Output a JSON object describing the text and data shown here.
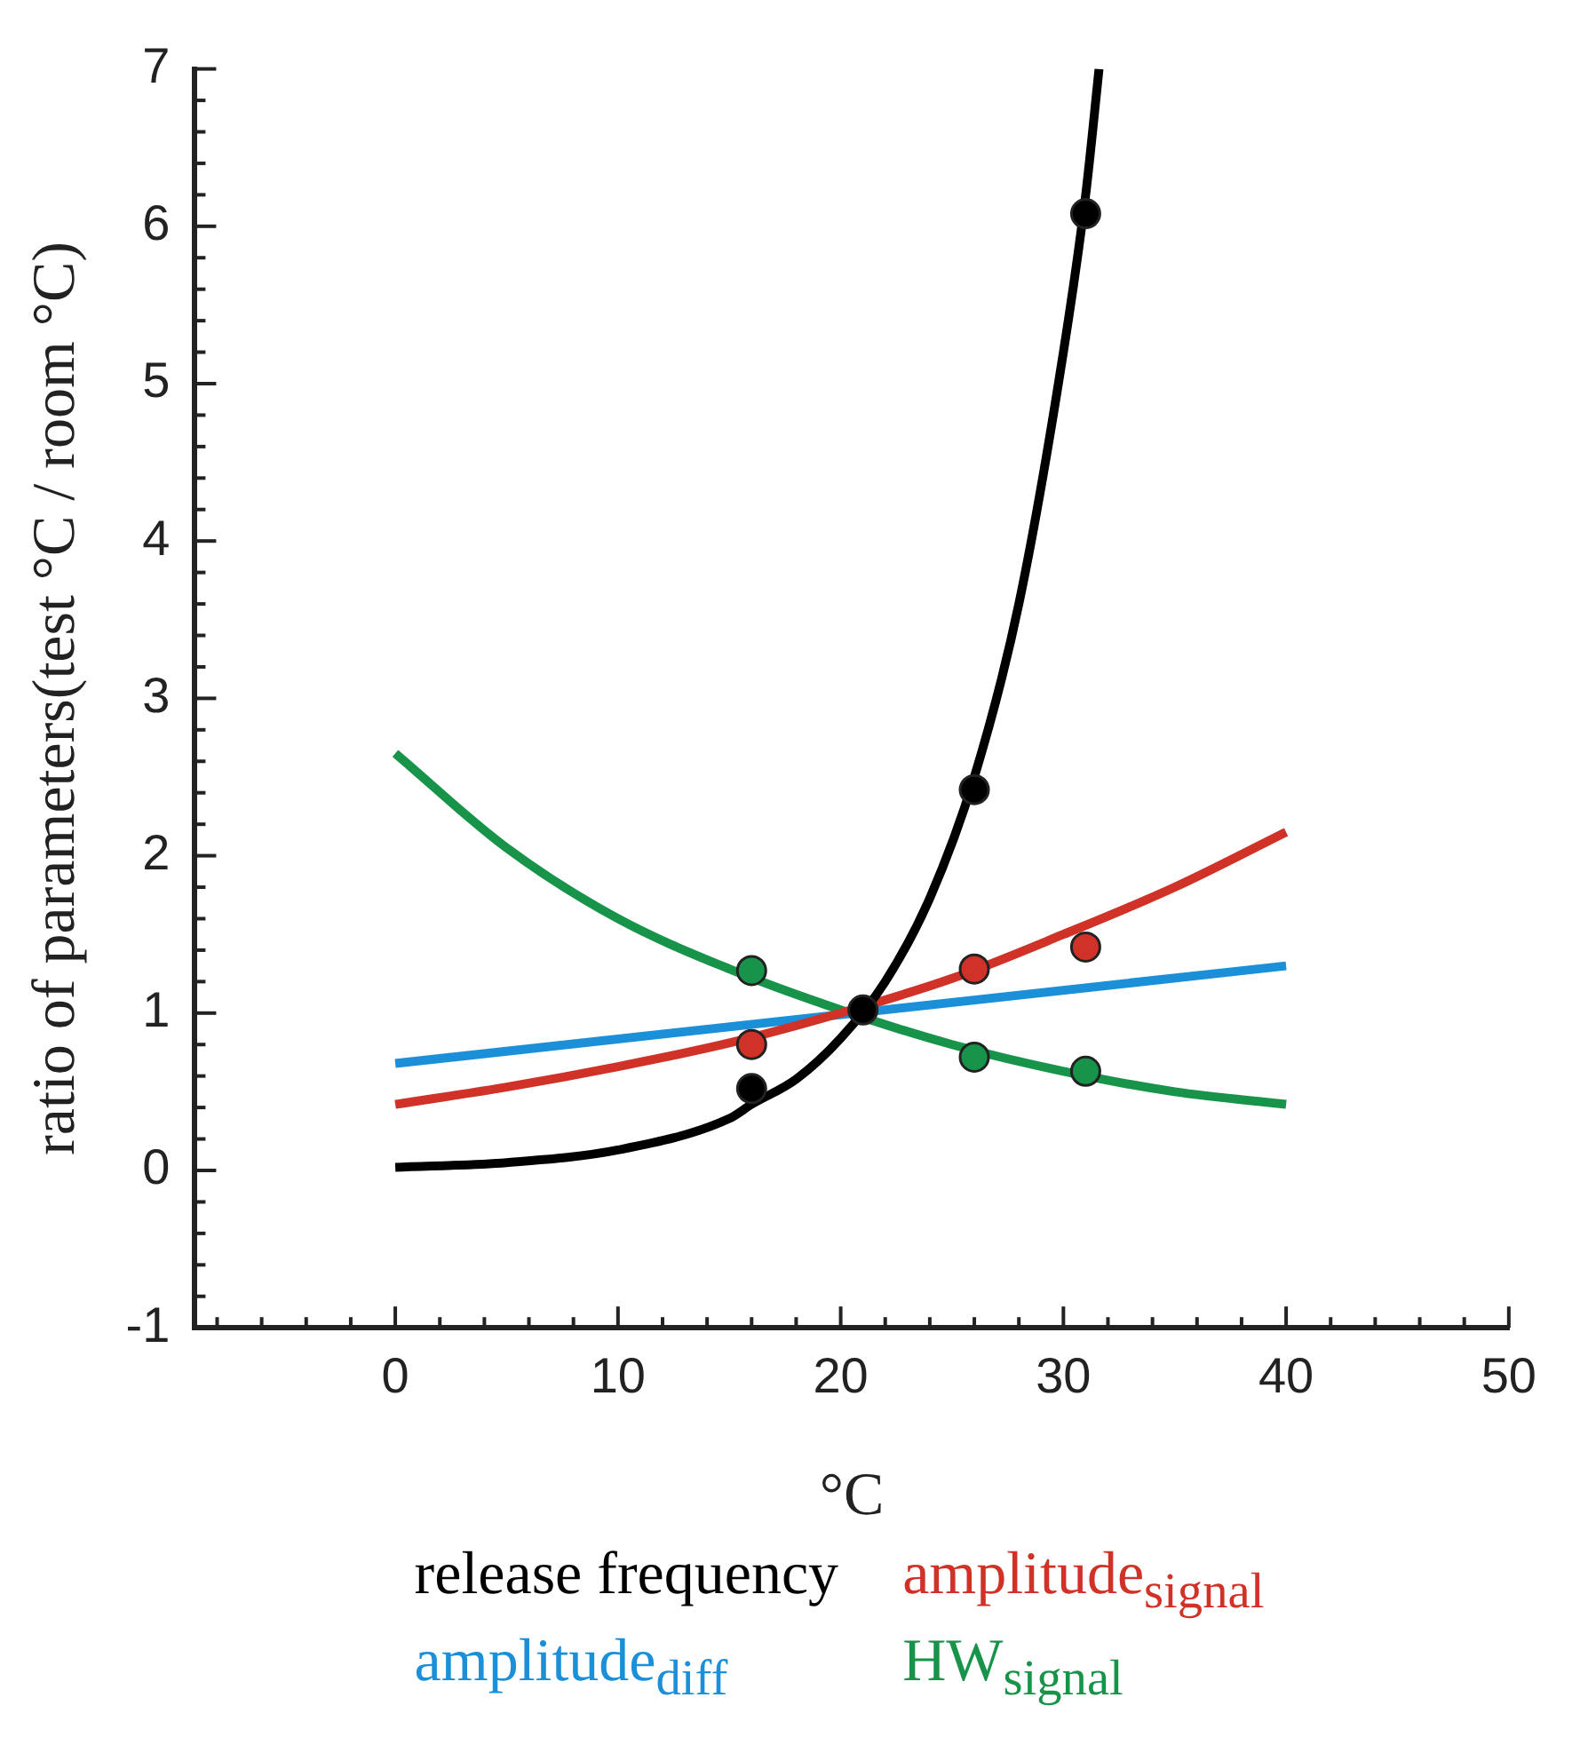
{
  "chart_data": {
    "type": "line",
    "xlabel": "°C",
    "ylabel": "ratio of parameters(test °C / room °C)",
    "xlim": [
      -9,
      50
    ],
    "xticks": [
      {
        "value": -8,
        "label": null
      },
      {
        "value": -6,
        "label": null
      },
      {
        "value": -4,
        "label": null
      },
      {
        "value": -2,
        "label": null
      },
      0,
      {
        "value": 2,
        "label": null
      },
      {
        "value": 4,
        "label": null
      },
      {
        "value": 6,
        "label": null
      },
      {
        "value": 8,
        "label": null
      },
      10,
      {
        "value": 12,
        "label": null
      },
      {
        "value": 14,
        "label": null
      },
      {
        "value": 16,
        "label": null
      },
      {
        "value": 18,
        "label": null
      },
      20,
      {
        "value": 22,
        "label": null
      },
      {
        "value": 24,
        "label": null
      },
      {
        "value": 26,
        "label": null
      },
      {
        "value": 28,
        "label": null
      },
      30,
      {
        "value": 32,
        "label": null
      },
      {
        "value": 34,
        "label": null
      },
      {
        "value": 36,
        "label": null
      },
      {
        "value": 38,
        "label": null
      },
      40,
      {
        "value": 42,
        "label": null
      },
      {
        "value": 44,
        "label": null
      },
      {
        "value": 46,
        "label": null
      },
      {
        "value": 48,
        "label": null
      },
      50
    ],
    "ylim": [
      -1,
      7
    ],
    "yticks": [
      -1,
      {
        "value": -0.8,
        "label": null
      },
      {
        "value": -0.6,
        "label": null
      },
      {
        "value": -0.4,
        "label": null
      },
      {
        "value": -0.2,
        "label": null
      },
      0,
      {
        "value": 0.2,
        "label": null
      },
      {
        "value": 0.4,
        "label": null
      },
      {
        "value": 0.6,
        "label": null
      },
      {
        "value": 0.8,
        "label": null
      },
      1,
      {
        "value": 1.2,
        "label": null
      },
      {
        "value": 1.4,
        "label": null
      },
      {
        "value": 1.6,
        "label": null
      },
      {
        "value": 1.8,
        "label": null
      },
      2,
      {
        "value": 2.2,
        "label": null
      },
      {
        "value": 2.4,
        "label": null
      },
      {
        "value": 2.6,
        "label": null
      },
      {
        "value": 2.8,
        "label": null
      },
      3,
      {
        "value": 3.2,
        "label": null
      },
      {
        "value": 3.4,
        "label": null
      },
      {
        "value": 3.6,
        "label": null
      },
      {
        "value": 3.8,
        "label": null
      },
      4,
      {
        "value": 4.2,
        "label": null
      },
      {
        "value": 4.4,
        "label": null
      },
      {
        "value": 4.6,
        "label": null
      },
      {
        "value": 4.8,
        "label": null
      },
      5,
      {
        "value": 5.2,
        "label": null
      },
      {
        "value": 5.4,
        "label": null
      },
      {
        "value": 5.6,
        "label": null
      },
      {
        "value": 5.8,
        "label": null
      },
      6,
      {
        "value": 6.2,
        "label": null
      },
      {
        "value": 6.4,
        "label": null
      },
      {
        "value": 6.6,
        "label": null
      },
      {
        "value": 6.8,
        "label": null
      },
      7
    ],
    "grid": false,
    "legend": "bottom",
    "series": [
      {
        "name": "release frequency",
        "type": "line",
        "marker": "none",
        "color": "#000000",
        "x": [
          0,
          5,
          10,
          15,
          16,
          18,
          20,
          22,
          24,
          26,
          28,
          30,
          31,
          31.6
        ],
        "values": [
          0.02,
          0.05,
          0.13,
          0.33,
          0.42,
          0.58,
          0.84,
          1.2,
          1.73,
          2.5,
          3.6,
          5.2,
          6.2,
          7.0
        ]
      },
      {
        "name": "amplitude$_{signal}$",
        "type": "line",
        "marker": "none",
        "color": "#d03227",
        "x": [
          0,
          5,
          10,
          15,
          20,
          25,
          30,
          35,
          40
        ],
        "values": [
          0.42,
          0.53,
          0.66,
          0.81,
          1.0,
          1.22,
          1.5,
          1.8,
          2.15
        ]
      },
      {
        "name": "amplitude$_{diff}$",
        "type": "line",
        "marker": "none",
        "color": "#1b8fd8",
        "x": [
          0,
          40
        ],
        "values": [
          0.68,
          1.3
        ]
      },
      {
        "name": "HW$_{signal}$",
        "type": "line",
        "marker": "none",
        "color": "#17944a",
        "x": [
          0,
          5,
          10,
          15,
          20,
          25,
          30,
          35,
          40
        ],
        "values": [
          2.65,
          2.05,
          1.6,
          1.28,
          1.02,
          0.8,
          0.63,
          0.5,
          0.42
        ]
      },
      {
        "type": "scatter",
        "marker": "circle",
        "color": "#000000",
        "x": [
          16,
          21,
          26,
          31
        ],
        "values": [
          0.52,
          1.02,
          2.42,
          6.08
        ]
      },
      {
        "type": "scatter",
        "marker": "circle",
        "color": "#d03227",
        "x": [
          16,
          26,
          31
        ],
        "values": [
          0.8,
          1.28,
          1.42
        ]
      },
      {
        "type": "scatter",
        "marker": "circle",
        "color": "#17944a",
        "x": [
          16,
          26,
          31
        ],
        "values": [
          1.27,
          0.72,
          0.63
        ]
      }
    ]
  }
}
